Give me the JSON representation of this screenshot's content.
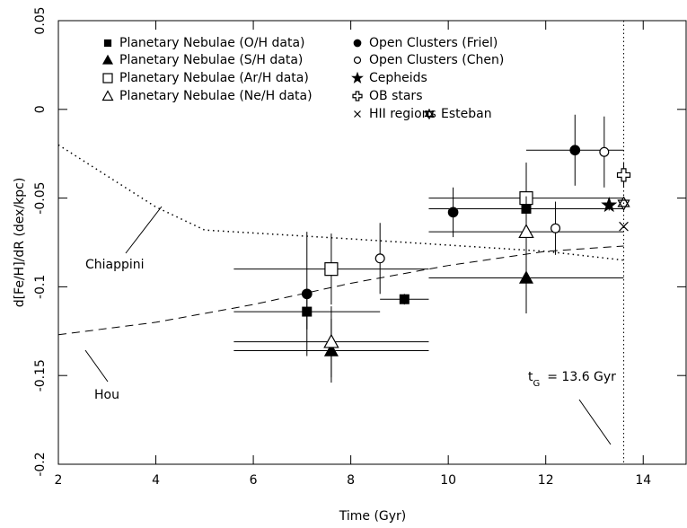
{
  "chart_data": {
    "type": "scatter",
    "xlabel": "Time (Gyr)",
    "ylabel": "d[Fe/H]/dR (dex/kpc)",
    "xlim": [
      2,
      14.88
    ],
    "ylim": [
      -0.2,
      0.05
    ],
    "xticks": [
      2,
      4,
      6,
      8,
      10,
      12,
      14
    ],
    "yticks": [
      0.05,
      0,
      -0.05,
      -0.1,
      -0.15,
      -0.2
    ],
    "grid": false,
    "series": [
      {
        "name": "Planetary Nebulae (O/H data)",
        "marker": "square-filled",
        "color": "#000000",
        "x": [
          7.1,
          9.1,
          11.6
        ],
        "y": [
          -0.114,
          -0.107,
          -0.056
        ],
        "xerr": [
          1.5,
          0.5,
          2
        ],
        "yerr": [
          0.01,
          0.003,
          0.01
        ]
      },
      {
        "name": "Planetary Nebulae (S/H data)",
        "marker": "triangle-filled",
        "color": "#000000",
        "x": [
          7.6,
          11.6
        ],
        "y": [
          -0.136,
          -0.095
        ],
        "xerr": [
          2,
          2
        ],
        "yerr": [
          0.018,
          0.02
        ]
      },
      {
        "name": "Planetary Nebulae (Ar/H data)",
        "marker": "square-open",
        "color": "#000000",
        "x": [
          7.6,
          11.6
        ],
        "y": [
          -0.09,
          -0.05
        ],
        "xerr": [
          2,
          2
        ],
        "yerr": [
          0.02,
          0.02
        ]
      },
      {
        "name": "Planetary Nebulae (Ne/H data)",
        "marker": "triangle-open",
        "color": "#000000",
        "x": [
          7.6,
          11.6
        ],
        "y": [
          -0.131,
          -0.069
        ],
        "xerr": [
          2,
          2
        ],
        "yerr": [
          0.02,
          0.02
        ]
      },
      {
        "name": "Open Clusters (Friel)",
        "marker": "circle-filled",
        "color": "#000000",
        "x": [
          7.1,
          10.1,
          12.6
        ],
        "y": [
          -0.104,
          -0.058,
          -0.023
        ],
        "xerr": [
          0,
          0,
          1
        ],
        "yerr": [
          0.035,
          0.014,
          0.02
        ]
      },
      {
        "name": "Open Clusters (Chen)",
        "marker": "circle-open",
        "color": "#000000",
        "x": [
          8.6,
          12.2,
          13.2
        ],
        "y": [
          -0.084,
          -0.067,
          -0.024
        ],
        "xerr": [
          0,
          0,
          0
        ],
        "yerr": [
          0.02,
          0.015,
          0.02
        ]
      },
      {
        "name": "Cepheids",
        "marker": "star",
        "color": "#000000",
        "x": [
          13.3
        ],
        "y": [
          -0.054
        ],
        "xerr": [
          0
        ],
        "yerr": [
          0.003
        ]
      },
      {
        "name": "OB stars",
        "marker": "cross-open",
        "color": "#000000",
        "x": [
          13.6
        ],
        "y": [
          -0.037
        ],
        "xerr": [
          0
        ],
        "yerr": [
          0.007
        ]
      },
      {
        "name": "HII regions",
        "marker": "x",
        "color": "#000000",
        "x": [
          13.6
        ],
        "y": [
          -0.066
        ],
        "xerr": [
          0
        ],
        "yerr": [
          0
        ]
      },
      {
        "name": "Esteban",
        "marker": "david",
        "color": "#000000",
        "x": [
          13.6
        ],
        "y": [
          -0.053
        ],
        "xerr": [
          0
        ],
        "yerr": [
          0
        ]
      }
    ],
    "curves": [
      {
        "name": "Chiappini",
        "dash": "dotted",
        "x": [
          2,
          4,
          5,
          8,
          12,
          13.6
        ],
        "y": [
          -0.02,
          -0.055,
          -0.068,
          -0.073,
          -0.08,
          -0.085
        ]
      },
      {
        "name": "Hou",
        "dash": "dashed",
        "x": [
          2,
          4,
          6,
          8,
          10,
          12,
          13.6
        ],
        "y": [
          -0.127,
          -0.12,
          -0.11,
          -0.098,
          -0.088,
          -0.08,
          -0.077
        ]
      }
    ],
    "vline": {
      "x": 13.6,
      "label_main": "t",
      "label_sub": "G",
      "label_rest": "= 13.6 Gyr"
    }
  }
}
